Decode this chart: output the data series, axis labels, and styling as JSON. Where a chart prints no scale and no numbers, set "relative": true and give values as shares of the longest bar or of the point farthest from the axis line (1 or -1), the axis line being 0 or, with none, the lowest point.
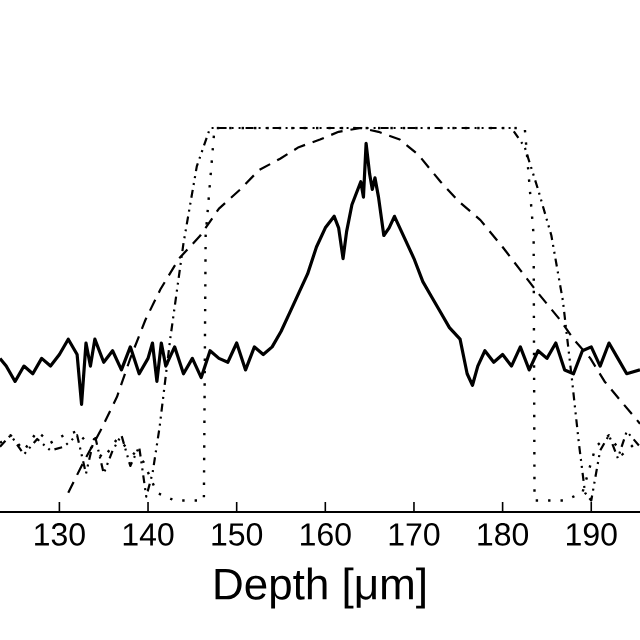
{
  "chart_data": {
    "type": "line",
    "xlabel": "Depth [μm]",
    "relative": true,
    "xlim": [
      123.3,
      195.5
    ],
    "xticks": [
      130,
      140,
      150,
      160,
      170,
      180,
      190
    ],
    "marker": "none",
    "grid": false,
    "tick_labels": "x",
    "series": [
      {
        "color": "#000000",
        "line_style": "solid",
        "x": [
          123.3,
          124,
          125,
          126,
          127,
          128,
          129,
          130,
          131,
          132,
          132.5,
          133,
          133.5,
          134,
          135,
          136,
          137,
          138,
          139,
          140,
          140.5,
          141,
          141.5,
          142,
          143,
          144,
          145,
          146,
          147,
          148,
          149,
          150,
          151,
          152,
          153,
          154,
          155,
          156,
          157,
          158,
          159,
          160,
          161,
          161.5,
          162,
          162.4,
          163,
          163.5,
          164,
          164.3,
          164.6,
          165,
          165.3,
          165.6,
          166,
          166.6,
          167.2,
          167.8,
          169,
          170,
          171,
          172,
          173,
          174,
          175.2,
          176,
          176.6,
          177.2,
          178,
          179,
          180,
          181,
          182,
          183,
          184,
          185,
          186,
          187,
          188,
          189,
          190,
          191,
          192,
          193,
          194,
          195.5
        ],
        "values": [
          0.4,
          0.38,
          0.34,
          0.38,
          0.36,
          0.4,
          0.38,
          0.41,
          0.45,
          0.41,
          0.28,
          0.44,
          0.38,
          0.45,
          0.39,
          0.42,
          0.37,
          0.43,
          0.36,
          0.4,
          0.44,
          0.34,
          0.44,
          0.38,
          0.43,
          0.36,
          0.4,
          0.35,
          0.42,
          0.4,
          0.39,
          0.44,
          0.37,
          0.43,
          0.41,
          0.43,
          0.47,
          0.52,
          0.57,
          0.62,
          0.69,
          0.74,
          0.77,
          0.74,
          0.66,
          0.73,
          0.8,
          0.83,
          0.86,
          0.82,
          0.96,
          0.88,
          0.84,
          0.87,
          0.82,
          0.72,
          0.74,
          0.77,
          0.71,
          0.66,
          0.6,
          0.56,
          0.52,
          0.48,
          0.45,
          0.36,
          0.33,
          0.38,
          0.42,
          0.39,
          0.41,
          0.38,
          0.43,
          0.37,
          0.42,
          0.4,
          0.44,
          0.37,
          0.36,
          0.42,
          0.43,
          0.38,
          0.44,
          0.4,
          0.36,
          0.37
        ]
      },
      {
        "color": "#000000",
        "line_style": "dashed",
        "x": [
          131,
          132.5,
          134.6,
          136.5,
          138,
          139.7,
          141.4,
          143.5,
          145.9,
          148,
          150.4,
          152.5,
          154.9,
          157,
          159.4,
          161.5,
          164,
          166,
          168.4,
          170.5,
          173,
          175,
          177.5,
          180,
          182,
          184,
          186.5,
          188,
          189.9,
          191.5,
          193.3,
          195.5
        ],
        "values": [
          0.05,
          0.12,
          0.21,
          0.3,
          0.4,
          0.5,
          0.58,
          0.66,
          0.72,
          0.79,
          0.84,
          0.89,
          0.92,
          0.95,
          0.97,
          0.99,
          1,
          0.99,
          0.97,
          0.93,
          0.86,
          0.81,
          0.76,
          0.69,
          0.63,
          0.57,
          0.5,
          0.45,
          0.4,
          0.34,
          0.29,
          0.23
        ]
      },
      {
        "color": "#000000",
        "line_style": "dashdot",
        "x": [
          123.3,
          124.5,
          126,
          127.5,
          129,
          130.5,
          132,
          133,
          134,
          135,
          136,
          137,
          138,
          139,
          139.8,
          140.5,
          141.3,
          142.5,
          144,
          145.5,
          147,
          164,
          181,
          182.5,
          184,
          185.5,
          186.8,
          187.8,
          188.6,
          189.3,
          190,
          191,
          192,
          193,
          194,
          195.5
        ],
        "values": [
          0.17,
          0.2,
          0.15,
          0.19,
          0.16,
          0.17,
          0.2,
          0.1,
          0.2,
          0.1,
          0.16,
          0.2,
          0.12,
          0.17,
          0.04,
          0.1,
          0.22,
          0.45,
          0.7,
          0.9,
          1,
          1,
          1,
          0.95,
          0.84,
          0.72,
          0.55,
          0.35,
          0.18,
          0.05,
          0.03,
          0.16,
          0.2,
          0.14,
          0.21,
          0.17
        ]
      },
      {
        "color": "#000000",
        "line_style": "dotted",
        "x": [
          123.3,
          124.5,
          126,
          127.5,
          129,
          130.5,
          132,
          133.5,
          135,
          136.5,
          138,
          139.5,
          141,
          143,
          145,
          146.3,
          146.5,
          147.5,
          164,
          182.5,
          183.5,
          183.6,
          185,
          187,
          189,
          190.5,
          192,
          193.5,
          195.5
        ],
        "values": [
          0.18,
          0.2,
          0.16,
          0.21,
          0.18,
          0.2,
          0.21,
          0.17,
          0.14,
          0.19,
          0.16,
          0.13,
          0.05,
          0.03,
          0.03,
          0.03,
          0.72,
          1,
          1,
          1,
          0.72,
          0.03,
          0.03,
          0.03,
          0.05,
          0.17,
          0.2,
          0.15,
          0.19
        ]
      }
    ]
  }
}
